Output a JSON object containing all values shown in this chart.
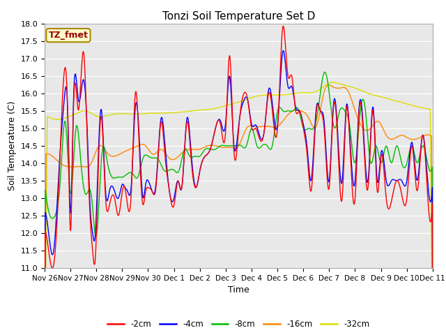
{
  "title": "Tonzi Soil Temperature Set D",
  "xlabel": "Time",
  "ylabel": "Soil Temperature (C)",
  "ylim": [
    11.0,
    18.0
  ],
  "yticks": [
    11.0,
    11.5,
    12.0,
    12.5,
    13.0,
    13.5,
    14.0,
    14.5,
    15.0,
    15.5,
    16.0,
    16.5,
    17.0,
    17.5,
    18.0
  ],
  "xtick_labels": [
    "Nov 26",
    "Nov 27",
    "Nov 28",
    "Nov 29",
    "Nov 30",
    "Dec 1",
    "Dec 2",
    "Dec 3",
    "Dec 4",
    "Dec 5",
    "Dec 6",
    "Dec 7",
    "Dec 8",
    "Dec 9",
    "Dec 10",
    "Dec 11"
  ],
  "legend_labels": [
    "-2cm",
    "-4cm",
    "-8cm",
    "-16cm",
    "-32cm"
  ],
  "colors": [
    "#ff0000",
    "#0000ff",
    "#00bb00",
    "#ff8800",
    "#dddd00"
  ],
  "line_width": 1.0,
  "bg_color": "#dcdcdc",
  "plot_bg": "#e8e8e8",
  "annotation_text": "TZ_fmet",
  "annotation_color": "#990000",
  "annotation_bg": "#ffffcc",
  "annotation_border": "#aa8800",
  "red_x": [
    0.0,
    0.15,
    0.35,
    0.55,
    0.75,
    0.9,
    1.0,
    1.1,
    1.3,
    1.5,
    1.65,
    1.75,
    1.85,
    1.95,
    2.1,
    2.2,
    2.35,
    2.5,
    2.7,
    2.85,
    3.0,
    3.1,
    3.2,
    3.35,
    3.5,
    3.65,
    3.8,
    3.9,
    4.0,
    4.15,
    4.3,
    4.5,
    4.65,
    4.8,
    5.0,
    5.15,
    5.3,
    5.5,
    5.65,
    5.85,
    6.0,
    6.2,
    6.4,
    6.6,
    6.8,
    7.0,
    7.15,
    7.3,
    7.5,
    7.7,
    7.85,
    8.0,
    8.15,
    8.3,
    8.5,
    8.65,
    8.8,
    9.0,
    9.2,
    9.4,
    9.55,
    9.7,
    9.85,
    10.0,
    10.15,
    10.3,
    10.5,
    10.65,
    10.8,
    11.0,
    11.15,
    11.3,
    11.5,
    11.65,
    11.8,
    12.0,
    12.15,
    12.3,
    12.5,
    12.7,
    12.85,
    13.0,
    13.2,
    13.4,
    13.6,
    13.8,
    14.0,
    14.2,
    14.4,
    14.6,
    14.8,
    15.0
  ],
  "red_y": [
    12.1,
    11.5,
    11.1,
    13.5,
    16.6,
    15.0,
    12.0,
    15.3,
    15.5,
    17.2,
    14.5,
    12.5,
    11.5,
    11.2,
    14.5,
    15.3,
    13.0,
    12.8,
    13.0,
    12.5,
    13.2,
    13.3,
    12.8,
    13.2,
    16.0,
    14.5,
    12.8,
    13.2,
    13.3,
    13.2,
    13.3,
    15.2,
    14.2,
    13.3,
    12.8,
    13.5,
    13.3,
    15.2,
    14.2,
    13.3,
    13.8,
    14.2,
    14.4,
    15.0,
    15.1,
    15.0,
    17.1,
    14.5,
    15.0,
    16.0,
    15.8,
    15.0,
    15.0,
    14.7,
    15.0,
    16.0,
    15.5,
    15.0,
    17.9,
    16.5,
    16.5,
    15.5,
    15.5,
    15.0,
    14.2,
    13.2,
    15.5,
    15.5,
    15.0,
    13.3,
    15.5,
    15.0,
    13.0,
    15.5,
    14.5,
    13.0,
    15.5,
    15.0,
    13.3,
    15.5,
    13.2,
    14.2,
    13.0,
    12.9,
    13.5,
    13.1,
    13.0,
    14.5,
    13.2,
    14.8,
    13.1,
    13.1
  ],
  "blue_x": [
    0.0,
    0.15,
    0.35,
    0.55,
    0.75,
    0.9,
    1.0,
    1.1,
    1.3,
    1.5,
    1.65,
    1.75,
    1.85,
    1.95,
    2.1,
    2.2,
    2.35,
    2.5,
    2.7,
    2.85,
    3.0,
    3.1,
    3.2,
    3.35,
    3.5,
    3.65,
    3.8,
    3.9,
    4.0,
    4.15,
    4.3,
    4.5,
    4.65,
    4.8,
    5.0,
    5.15,
    5.3,
    5.5,
    5.65,
    5.85,
    6.0,
    6.2,
    6.4,
    6.6,
    6.8,
    7.0,
    7.15,
    7.3,
    7.5,
    7.7,
    7.85,
    8.0,
    8.15,
    8.3,
    8.5,
    8.65,
    8.8,
    9.0,
    9.2,
    9.4,
    9.55,
    9.7,
    9.85,
    10.0,
    10.15,
    10.3,
    10.5,
    10.65,
    10.8,
    11.0,
    11.15,
    11.3,
    11.5,
    11.65,
    11.8,
    12.0,
    12.15,
    12.3,
    12.5,
    12.7,
    12.85,
    13.0,
    13.2,
    13.4,
    13.6,
    13.8,
    14.0,
    14.2,
    14.4,
    14.6,
    14.8,
    15.0
  ],
  "blue_y": [
    12.6,
    12.0,
    11.5,
    13.8,
    15.8,
    15.2,
    12.5,
    15.5,
    15.8,
    16.4,
    14.8,
    12.8,
    12.0,
    11.9,
    14.8,
    15.5,
    13.2,
    13.2,
    13.2,
    13.0,
    13.4,
    13.3,
    13.2,
    13.4,
    15.6,
    14.8,
    13.0,
    13.4,
    13.5,
    13.2,
    13.4,
    15.3,
    14.5,
    13.3,
    13.0,
    13.5,
    13.3,
    15.3,
    14.4,
    13.3,
    13.8,
    14.2,
    14.4,
    15.0,
    15.2,
    15.2,
    16.5,
    14.6,
    15.1,
    15.8,
    15.8,
    15.1,
    15.1,
    14.8,
    15.0,
    16.1,
    15.7,
    15.1,
    17.2,
    16.2,
    16.2,
    15.6,
    15.5,
    15.1,
    14.4,
    13.5,
    15.6,
    15.5,
    15.2,
    13.5,
    15.6,
    15.2,
    13.5,
    15.6,
    14.7,
    13.5,
    15.6,
    15.2,
    13.5,
    15.6,
    13.5,
    14.3,
    13.5,
    13.5,
    13.5,
    13.5,
    13.5,
    14.6,
    13.5,
    14.8,
    13.5,
    13.5
  ],
  "green_x": [
    0.0,
    0.2,
    0.4,
    0.6,
    0.8,
    1.0,
    1.2,
    1.4,
    1.6,
    1.8,
    2.0,
    2.2,
    2.4,
    2.6,
    2.8,
    3.0,
    3.2,
    3.4,
    3.6,
    3.8,
    4.0,
    4.2,
    4.4,
    4.6,
    4.8,
    5.0,
    5.2,
    5.4,
    5.6,
    5.8,
    6.0,
    6.2,
    6.4,
    6.6,
    6.8,
    7.0,
    7.2,
    7.4,
    7.6,
    7.8,
    8.0,
    8.2,
    8.4,
    8.6,
    8.8,
    9.0,
    9.2,
    9.4,
    9.6,
    9.8,
    10.0,
    10.2,
    10.4,
    10.6,
    10.8,
    11.0,
    11.2,
    11.4,
    11.6,
    11.8,
    12.0,
    12.2,
    12.4,
    12.6,
    12.8,
    13.0,
    13.2,
    13.4,
    13.6,
    13.8,
    14.0,
    14.2,
    14.4,
    14.6,
    14.8,
    15.0
  ],
  "green_y": [
    13.4,
    12.5,
    12.5,
    13.5,
    15.2,
    13.1,
    15.0,
    14.0,
    13.1,
    13.1,
    11.9,
    14.2,
    14.1,
    13.6,
    13.6,
    13.6,
    13.7,
    13.7,
    13.6,
    14.15,
    14.2,
    14.15,
    14.1,
    13.8,
    13.8,
    13.8,
    13.8,
    14.4,
    14.2,
    14.2,
    14.2,
    14.4,
    14.4,
    14.4,
    14.5,
    14.5,
    14.5,
    14.5,
    14.5,
    14.5,
    15.0,
    14.5,
    14.5,
    14.5,
    14.5,
    15.5,
    15.5,
    15.5,
    15.5,
    15.55,
    15.0,
    15.0,
    15.0,
    15.7,
    16.6,
    16.0,
    15.0,
    15.5,
    15.5,
    15.0,
    14.0,
    15.5,
    15.5,
    14.0,
    14.5,
    14.0,
    14.5,
    14.0,
    14.5,
    14.0,
    14.0,
    14.5,
    14.0,
    14.5,
    14.0,
    14.0
  ],
  "orange_x": [
    0.0,
    0.3,
    0.6,
    0.9,
    1.2,
    1.5,
    1.8,
    2.1,
    2.4,
    2.7,
    3.0,
    3.3,
    3.6,
    3.9,
    4.2,
    4.5,
    4.8,
    5.1,
    5.4,
    5.7,
    6.0,
    6.3,
    6.6,
    6.9,
    7.2,
    7.5,
    7.8,
    8.1,
    8.4,
    8.7,
    9.0,
    9.3,
    9.6,
    9.9,
    10.2,
    10.5,
    10.8,
    11.1,
    11.4,
    11.7,
    12.0,
    12.3,
    12.6,
    12.9,
    13.2,
    13.5,
    13.8,
    14.1,
    14.4,
    14.7,
    15.0
  ],
  "orange_y": [
    14.25,
    14.2,
    14.0,
    13.9,
    13.9,
    13.9,
    14.0,
    14.5,
    14.3,
    14.2,
    14.3,
    14.4,
    14.5,
    14.5,
    14.25,
    14.4,
    14.15,
    14.15,
    14.35,
    14.4,
    14.4,
    14.5,
    14.5,
    14.45,
    14.45,
    14.5,
    15.0,
    15.05,
    15.05,
    15.05,
    15.05,
    15.3,
    15.5,
    15.5,
    15.3,
    15.05,
    16.05,
    16.2,
    16.15,
    16.1,
    15.5,
    15.0,
    15.0,
    15.2,
    14.8,
    14.7,
    14.8,
    14.7,
    14.7,
    14.8,
    14.75
  ],
  "yellow_x": [
    0.0,
    0.5,
    1.0,
    1.3,
    1.6,
    2.0,
    2.5,
    3.0,
    3.5,
    4.0,
    4.5,
    5.0,
    5.5,
    6.0,
    6.5,
    7.0,
    7.5,
    8.0,
    8.5,
    9.0,
    9.5,
    10.0,
    10.5,
    11.0,
    11.5,
    12.0,
    12.5,
    13.0,
    13.5,
    14.0,
    14.5,
    15.0
  ],
  "yellow_y": [
    15.4,
    15.25,
    15.35,
    15.45,
    15.5,
    15.35,
    15.38,
    15.42,
    15.4,
    15.43,
    15.43,
    15.45,
    15.48,
    15.52,
    15.55,
    15.65,
    15.75,
    15.88,
    15.95,
    15.95,
    15.98,
    16.02,
    16.05,
    16.3,
    16.25,
    16.15,
    16.0,
    15.9,
    15.8,
    15.7,
    15.6,
    15.55
  ]
}
